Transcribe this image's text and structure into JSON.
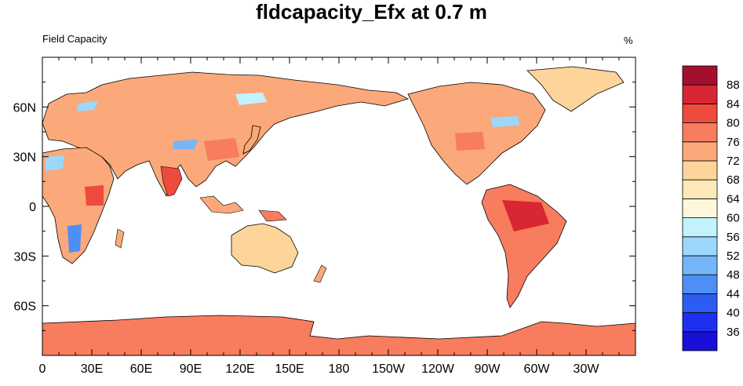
{
  "title": "fldcapacity_Efx at 0.7 m",
  "left_label": "Field Capacity",
  "right_label": "%",
  "x_ticks": [
    {
      "label": "0",
      "lon": 0
    },
    {
      "label": "30E",
      "lon": 30
    },
    {
      "label": "60E",
      "lon": 60
    },
    {
      "label": "90E",
      "lon": 90
    },
    {
      "label": "120E",
      "lon": 120
    },
    {
      "label": "150E",
      "lon": 150
    },
    {
      "label": "180",
      "lon": 180
    },
    {
      "label": "150W",
      "lon": 210
    },
    {
      "label": "120W",
      "lon": 240
    },
    {
      "label": "90W",
      "lon": 270
    },
    {
      "label": "60W",
      "lon": 300
    },
    {
      "label": "30W",
      "lon": 330
    }
  ],
  "y_ticks": [
    {
      "label": "60N",
      "lat": 60
    },
    {
      "label": "30N",
      "lat": 30
    },
    {
      "label": "0",
      "lat": 0
    },
    {
      "label": "30S",
      "lat": -30
    },
    {
      "label": "60S",
      "lat": -60
    }
  ],
  "colorbar": {
    "labels": [
      "36",
      "40",
      "44",
      "48",
      "52",
      "56",
      "60",
      "64",
      "68",
      "72",
      "76",
      "80",
      "84",
      "88"
    ],
    "colors": [
      "#1a0fd6",
      "#1f2ff0",
      "#2d5cf2",
      "#4d8ff5",
      "#74b6f8",
      "#9cd8fb",
      "#c2f2fd",
      "#fdf7db",
      "#fde9b8",
      "#fdd49a",
      "#fba87a",
      "#f87c5e",
      "#ee4a3e",
      "#d82634",
      "#a50f2e"
    ]
  },
  "chart_data": {
    "type": "heatmap",
    "title": "fldcapacity_Efx at 0.7 m",
    "subtitle_left": "Field Capacity",
    "units": "%",
    "x_range": [
      0,
      360
    ],
    "y_range": [
      -90,
      90
    ],
    "levels": [
      36,
      40,
      44,
      48,
      52,
      56,
      60,
      64,
      68,
      72,
      76,
      80,
      84,
      88
    ],
    "regions": [
      {
        "name": "Antarctica",
        "value": 78
      },
      {
        "name": "Eurasia",
        "value": 76
      },
      {
        "name": "India",
        "value": 84
      },
      {
        "name": "Central Africa",
        "value": 82
      },
      {
        "name": "Southern Africa",
        "value": 46
      },
      {
        "name": "Amazon",
        "value": 84
      },
      {
        "name": "North America",
        "value": 74
      },
      {
        "name": "Greenland",
        "value": 70
      },
      {
        "name": "Australia",
        "value": 70
      }
    ]
  }
}
